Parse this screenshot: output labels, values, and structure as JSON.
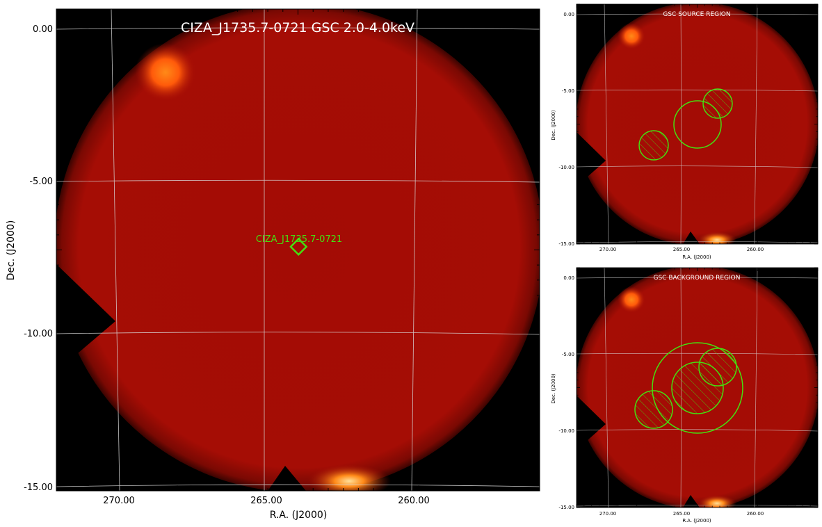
{
  "main": {
    "title": "CIZA_J1735.7-0721 GSC 2.0-4.0keV",
    "source_label": "CIZA_J1735.7-0721",
    "xlabel": "R.A. (J2000)",
    "ylabel": "Dec. (J2000)",
    "yticks": [
      "0.00",
      "-5.00",
      "-10.00",
      "-15.00"
    ],
    "xticks": [
      "270.00",
      "265.00",
      "260.00"
    ]
  },
  "source_panel": {
    "title": "GSC SOURCE REGION",
    "xlabel": "R.A. (J2000)",
    "ylabel": "Dec. (J2000)",
    "yticks": [
      "0.00",
      "-5.00",
      "-10.00",
      "-15.00"
    ],
    "xticks": [
      "270.00",
      "265.00",
      "260.00"
    ]
  },
  "background_panel": {
    "title": "GSC BACKGROUND REGION",
    "xlabel": "R.A. (J2000)",
    "ylabel": "Dec. (J2000)",
    "yticks": [
      "0.00",
      "-5.00",
      "-10.00",
      "-15.00"
    ],
    "xticks": [
      "270.00",
      "265.00",
      "260.00"
    ]
  },
  "colors": {
    "background": "#000000",
    "field": "#a50d05",
    "hotspot": "#ff7a10",
    "region": "#44e010",
    "grid": "#d8d8d8",
    "title": "#ffffff"
  }
}
